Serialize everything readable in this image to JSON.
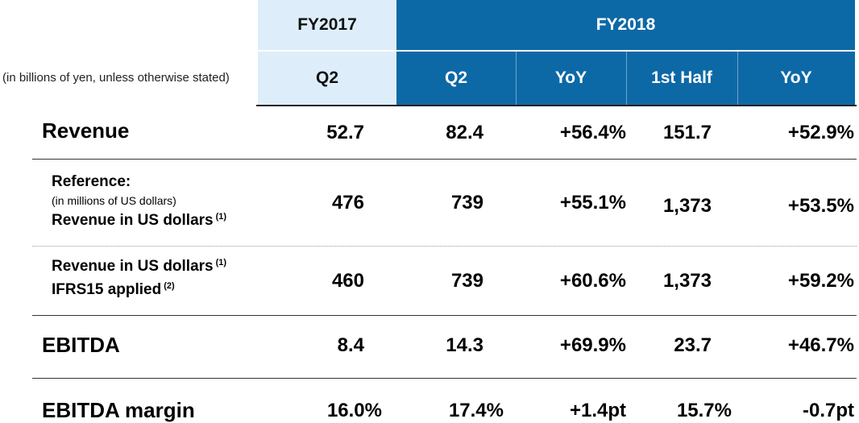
{
  "header": {
    "fy2017": "FY2017",
    "fy2018": "FY2018",
    "units_note": "(in billions of yen, unless otherwise stated)",
    "columns": [
      "Q2",
      "Q2",
      "YoY",
      "1st Half",
      "YoY"
    ]
  },
  "rows": [
    {
      "label": "Revenue",
      "values": [
        "52.7",
        "82.4",
        "+56.4%",
        "151.7",
        "+52.9%"
      ]
    },
    {
      "label_line1": "Reference:",
      "label_line2": "(in millions of US dollars)",
      "label_line3": "Revenue in US dollars",
      "label_note": "(1)",
      "values": [
        "476",
        "739",
        "+55.1%",
        "1,373",
        "+53.5%"
      ]
    },
    {
      "label_line1": "Revenue in US dollars",
      "label_note1": "(1)",
      "label_line2": "IFRS15 applied",
      "label_note2": "(2)",
      "values": [
        "460",
        "739",
        "+60.6%",
        "1,373",
        "+59.2%"
      ]
    },
    {
      "label": "EBITDA",
      "values": [
        "8.4",
        "14.3",
        "+69.9%",
        "23.7",
        "+46.7%"
      ]
    },
    {
      "label": "EBITDA margin",
      "values": [
        "16.0%",
        "17.4%",
        "+1.4pt",
        "15.7%",
        "-0.7pt"
      ]
    }
  ],
  "colors": {
    "header_light": "#ddeefa",
    "header_dark": "#0d69a6"
  }
}
